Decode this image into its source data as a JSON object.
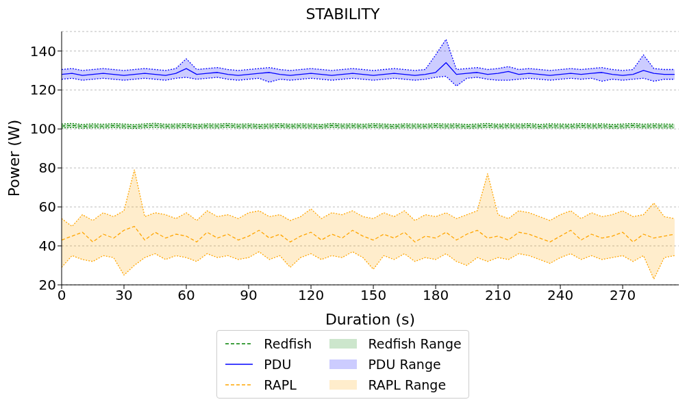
{
  "chart_data": {
    "type": "line",
    "title": "STABILITY",
    "xlabel": "Duration (s)",
    "ylabel": "Power (W)",
    "x": [
      0,
      5,
      10,
      15,
      20,
      25,
      30,
      35,
      40,
      45,
      50,
      55,
      60,
      65,
      70,
      75,
      80,
      85,
      90,
      95,
      100,
      105,
      110,
      115,
      120,
      125,
      130,
      135,
      140,
      145,
      150,
      155,
      160,
      165,
      170,
      175,
      180,
      185,
      190,
      195,
      200,
      205,
      210,
      215,
      220,
      225,
      230,
      235,
      240,
      245,
      250,
      255,
      260,
      265,
      270,
      275,
      280,
      285,
      290,
      295
    ],
    "xlim": [
      0,
      297
    ],
    "xticks": [
      0,
      30,
      60,
      90,
      120,
      150,
      180,
      210,
      240,
      270
    ],
    "ylim": [
      20,
      150
    ],
    "yticks": [
      20,
      40,
      60,
      80,
      100,
      120,
      140
    ],
    "grid": "y",
    "legend": "bottom",
    "marker": "none",
    "annotations": [
      "Redfish Range",
      "PDU Range",
      "RAPL Range"
    ],
    "series": [
      {
        "name": "Redfish",
        "line_style": "dashed",
        "color": "#008000",
        "values": [
          101.5,
          101.8,
          101.3,
          101.6,
          101.4,
          101.7,
          101.5,
          101.2,
          101.6,
          101.9,
          101.4,
          101.5,
          101.7,
          101.3,
          101.6,
          101.5,
          101.8,
          101.4,
          101.6,
          101.3,
          101.5,
          101.7,
          101.4,
          101.6,
          101.5,
          101.3,
          101.8,
          101.5,
          101.6,
          101.4,
          101.7,
          101.5,
          101.3,
          101.6,
          101.5,
          101.4,
          101.7,
          101.5,
          101.6,
          101.3,
          101.5,
          101.8,
          101.4,
          101.6,
          101.5,
          101.7,
          101.3,
          101.6,
          101.5,
          101.4,
          101.7,
          101.5,
          101.6,
          101.3,
          101.5,
          101.8,
          101.4,
          101.6,
          101.5,
          101.4
        ],
        "lower": [
          100.5,
          100.7,
          100.4,
          100.6,
          100.5,
          100.7,
          100.5,
          100.3,
          100.6,
          100.8,
          100.5,
          100.5,
          100.7,
          100.4,
          100.6,
          100.5,
          100.8,
          100.5,
          100.6,
          100.4,
          100.5,
          100.7,
          100.5,
          100.6,
          100.5,
          100.4,
          100.8,
          100.5,
          100.6,
          100.5,
          100.7,
          100.5,
          100.4,
          100.6,
          100.5,
          100.5,
          100.7,
          100.5,
          100.6,
          100.4,
          100.5,
          100.8,
          100.5,
          100.6,
          100.5,
          100.7,
          100.4,
          100.6,
          100.5,
          100.5,
          100.7,
          100.5,
          100.6,
          100.4,
          100.5,
          100.8,
          100.5,
          100.6,
          100.5,
          100.5
        ],
        "upper": [
          102.5,
          102.8,
          102.3,
          102.6,
          102.4,
          102.7,
          102.5,
          102.2,
          102.6,
          102.9,
          102.4,
          102.5,
          102.7,
          102.3,
          102.6,
          102.5,
          102.8,
          102.4,
          102.6,
          102.3,
          102.5,
          102.7,
          102.4,
          102.6,
          102.5,
          102.3,
          102.8,
          102.5,
          102.6,
          102.4,
          102.7,
          102.5,
          102.3,
          102.6,
          102.5,
          102.4,
          102.7,
          102.5,
          102.6,
          102.3,
          102.5,
          102.8,
          102.4,
          102.6,
          102.5,
          102.7,
          102.3,
          102.6,
          102.5,
          102.4,
          102.7,
          102.5,
          102.6,
          102.3,
          102.5,
          102.8,
          102.4,
          102.6,
          102.5,
          102.4
        ]
      },
      {
        "name": "PDU",
        "line_style": "solid",
        "color": "#0000ff",
        "values": [
          128,
          128.5,
          127.5,
          128,
          128.5,
          128,
          127.5,
          128,
          128.5,
          128,
          127.5,
          128.5,
          131,
          128,
          128.5,
          129,
          128,
          127.5,
          128,
          128.5,
          129,
          128,
          127.5,
          128,
          128.5,
          128,
          127.5,
          128,
          128.5,
          128,
          127.5,
          128,
          128.5,
          128,
          127.5,
          128,
          129,
          134,
          128,
          128.5,
          129,
          128,
          128.5,
          129.5,
          128,
          128.5,
          128,
          127.5,
          128,
          128.5,
          128,
          128.5,
          129,
          128,
          127.5,
          128,
          130,
          128.5,
          128,
          128
        ],
        "lower": [
          125.5,
          126,
          125,
          125.5,
          126,
          125.5,
          125,
          125.5,
          126,
          125.5,
          125,
          126,
          126.5,
          125.5,
          126,
          126.5,
          125.5,
          125,
          125.5,
          126,
          124,
          125.5,
          125,
          125.5,
          126,
          125.5,
          125,
          125.5,
          126,
          125.5,
          125,
          125.5,
          126,
          125.5,
          125,
          125.5,
          126.5,
          127,
          122,
          126,
          126.5,
          125.5,
          125,
          125,
          125.5,
          126,
          125.5,
          125,
          125.5,
          126,
          125.5,
          126,
          124.5,
          125.5,
          125,
          125.5,
          126,
          124.5,
          125.5,
          125.5
        ],
        "upper": [
          130.5,
          131,
          130,
          130.5,
          131,
          130.5,
          130,
          130.5,
          131,
          130.5,
          130,
          131,
          136,
          130.5,
          131,
          131.5,
          130.5,
          130,
          130.5,
          131,
          131.5,
          130.5,
          130,
          130.5,
          131,
          130.5,
          130,
          130.5,
          131,
          130.5,
          130,
          130.5,
          131,
          130.5,
          130,
          130.5,
          138,
          146,
          130.5,
          131,
          131.5,
          130.5,
          131,
          132,
          130.5,
          131,
          130.5,
          130,
          130.5,
          131,
          130.5,
          131,
          131.5,
          130.5,
          130,
          130.5,
          138,
          131,
          130.5,
          130.5
        ]
      },
      {
        "name": "RAPL",
        "line_style": "dashed",
        "color": "#ffa500",
        "values": [
          43,
          45,
          47,
          42,
          46,
          44,
          48,
          50,
          43,
          47,
          44,
          46,
          45,
          42,
          47,
          44,
          46,
          43,
          45,
          48,
          44,
          46,
          42,
          45,
          47,
          43,
          46,
          44,
          48,
          45,
          43,
          46,
          44,
          47,
          42,
          45,
          44,
          47,
          43,
          46,
          48,
          44,
          45,
          43,
          47,
          46,
          44,
          42,
          45,
          48,
          43,
          46,
          44,
          45,
          47,
          42,
          46,
          44,
          45,
          46
        ],
        "lower": [
          29,
          35,
          33,
          32,
          35,
          34,
          25,
          30,
          34,
          36,
          33,
          35,
          34,
          32,
          36,
          34,
          35,
          33,
          34,
          37,
          33,
          35,
          29,
          34,
          36,
          33,
          35,
          34,
          37,
          34,
          28,
          35,
          33,
          36,
          32,
          34,
          33,
          36,
          32,
          30,
          34,
          32,
          34,
          33,
          36,
          35,
          33,
          31,
          34,
          36,
          33,
          35,
          33,
          34,
          35,
          32,
          35,
          23,
          34,
          35
        ],
        "upper": [
          54,
          50,
          56,
          53,
          57,
          55,
          58,
          79,
          55,
          57,
          56,
          54,
          57,
          53,
          58,
          55,
          56,
          54,
          57,
          58,
          55,
          56,
          53,
          55,
          59,
          54,
          57,
          56,
          58,
          55,
          54,
          57,
          55,
          58,
          53,
          56,
          55,
          57,
          54,
          56,
          58,
          77,
          56,
          54,
          58,
          57,
          55,
          53,
          56,
          58,
          54,
          57,
          55,
          56,
          58,
          55,
          56,
          62,
          55,
          54
        ]
      },
      {
        "type": "line",
        "line_style": "dotted",
        "color": "#008000",
        "values": [
          100.5,
          100.7,
          100.4,
          100.6,
          100.5,
          100.7,
          100.5,
          100.3,
          100.6,
          100.8,
          100.5,
          100.5,
          100.7,
          100.4,
          100.6,
          100.5,
          100.8,
          100.5,
          100.6,
          100.4,
          100.5,
          100.7,
          100.5,
          100.6,
          100.5,
          100.4,
          100.8,
          100.5,
          100.6,
          100.5,
          100.7,
          100.5,
          100.4,
          100.6,
          100.5,
          100.5,
          100.7,
          100.5,
          100.6,
          100.4,
          100.5,
          100.8,
          100.5,
          100.6,
          100.5,
          100.7,
          100.4,
          100.6,
          100.5,
          100.5,
          100.7,
          100.5,
          100.6,
          100.4,
          100.5,
          100.8,
          100.5,
          100.6,
          100.5,
          100.5
        ]
      },
      {
        "type": "line",
        "line_style": "dotted",
        "color": "#008000",
        "values": [
          102.5,
          102.8,
          102.3,
          102.6,
          102.4,
          102.7,
          102.5,
          102.2,
          102.6,
          102.9,
          102.4,
          102.5,
          102.7,
          102.3,
          102.6,
          102.5,
          102.8,
          102.4,
          102.6,
          102.3,
          102.5,
          102.7,
          102.4,
          102.6,
          102.5,
          102.3,
          102.8,
          102.5,
          102.6,
          102.4,
          102.7,
          102.5,
          102.3,
          102.6,
          102.5,
          102.4,
          102.7,
          102.5,
          102.6,
          102.3,
          102.5,
          102.8,
          102.4,
          102.6,
          102.5,
          102.7,
          102.3,
          102.6,
          102.5,
          102.4,
          102.7,
          102.5,
          102.6,
          102.3,
          102.5,
          102.8,
          102.4,
          102.6,
          102.5,
          102.4
        ]
      },
      {
        "type": "line",
        "line_style": "dotted",
        "color": "#0000ff",
        "values": [
          125.5,
          126,
          125,
          125.5,
          126,
          125.5,
          125,
          125.5,
          126,
          125.5,
          125,
          126,
          126.5,
          125.5,
          126,
          126.5,
          125.5,
          125,
          125.5,
          126,
          124,
          125.5,
          125,
          125.5,
          126,
          125.5,
          125,
          125.5,
          126,
          125.5,
          125,
          125.5,
          126,
          125.5,
          125,
          125.5,
          126.5,
          127,
          122,
          126,
          126.5,
          125.5,
          125,
          125,
          125.5,
          126,
          125.5,
          125,
          125.5,
          126,
          125.5,
          126,
          124.5,
          125.5,
          125,
          125.5,
          126,
          124.5,
          125.5,
          125.5
        ]
      },
      {
        "type": "line",
        "line_style": "dotted",
        "color": "#0000ff",
        "values": [
          130.5,
          131,
          130,
          130.5,
          131,
          130.5,
          130,
          130.5,
          131,
          130.5,
          130,
          131,
          136,
          130.5,
          131,
          131.5,
          130.5,
          130,
          130.5,
          131,
          131.5,
          130.5,
          130,
          130.5,
          131,
          130.5,
          130,
          130.5,
          131,
          130.5,
          130,
          130.5,
          131,
          130.5,
          130,
          130.5,
          138,
          146,
          130.5,
          131,
          131.5,
          130.5,
          131,
          132,
          130.5,
          131,
          130.5,
          130,
          130.5,
          131,
          130.5,
          131,
          131.5,
          130.5,
          130,
          130.5,
          138,
          131,
          130.5,
          130.5
        ]
      },
      {
        "type": "line",
        "line_style": "dotted",
        "color": "#ffa500",
        "values": [
          29,
          35,
          33,
          32,
          35,
          34,
          25,
          30,
          34,
          36,
          33,
          35,
          34,
          32,
          36,
          34,
          35,
          33,
          34,
          37,
          33,
          35,
          29,
          34,
          36,
          33,
          35,
          34,
          37,
          34,
          28,
          35,
          33,
          36,
          32,
          34,
          33,
          36,
          32,
          30,
          34,
          32,
          34,
          33,
          36,
          35,
          33,
          31,
          34,
          36,
          33,
          35,
          33,
          34,
          35,
          32,
          35,
          23,
          34,
          35
        ]
      },
      {
        "type": "line",
        "line_style": "dotted",
        "color": "#ffa500",
        "values": [
          54,
          50,
          56,
          53,
          57,
          55,
          58,
          79,
          55,
          57,
          56,
          54,
          57,
          53,
          58,
          55,
          56,
          54,
          57,
          58,
          55,
          56,
          53,
          55,
          59,
          54,
          57,
          56,
          58,
          55,
          54,
          57,
          55,
          58,
          53,
          56,
          55,
          57,
          54,
          56,
          58,
          77,
          56,
          54,
          58,
          57,
          55,
          53,
          56,
          58,
          54,
          57,
          55,
          56,
          58,
          55,
          56,
          62,
          55,
          54
        ]
      }
    ]
  }
}
